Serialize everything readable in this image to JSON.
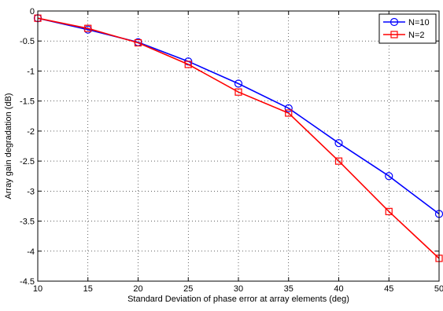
{
  "chart_data": {
    "type": "line",
    "title": "",
    "xlabel": "Standard Deviation of phase error at array elements (deg)",
    "ylabel": "Array gain degradation (dB)",
    "xlim": [
      10,
      50
    ],
    "ylim": [
      -4.5,
      0
    ],
    "x_ticks": [
      "10",
      "15",
      "20",
      "25",
      "30",
      "35",
      "40",
      "45",
      "50"
    ],
    "y_ticks": [
      "0",
      "-0.5",
      "-1",
      "-1.5",
      "-2",
      "-2.5",
      "-3",
      "-3.5",
      "-4",
      "-4.5"
    ],
    "grid": true,
    "legend_position": "top-right",
    "x": [
      10,
      15,
      20,
      25,
      30,
      35,
      40,
      45,
      50
    ],
    "series": [
      {
        "name": "N=10",
        "color": "#0000ff",
        "marker": "circle",
        "values": [
          -0.12,
          -0.31,
          -0.52,
          -0.84,
          -1.21,
          -1.62,
          -2.2,
          -2.75,
          -3.38
        ]
      },
      {
        "name": "N=2",
        "color": "#ff0000",
        "marker": "square",
        "values": [
          -0.12,
          -0.29,
          -0.53,
          -0.89,
          -1.35,
          -1.7,
          -2.5,
          -3.34,
          -4.12
        ]
      }
    ]
  }
}
